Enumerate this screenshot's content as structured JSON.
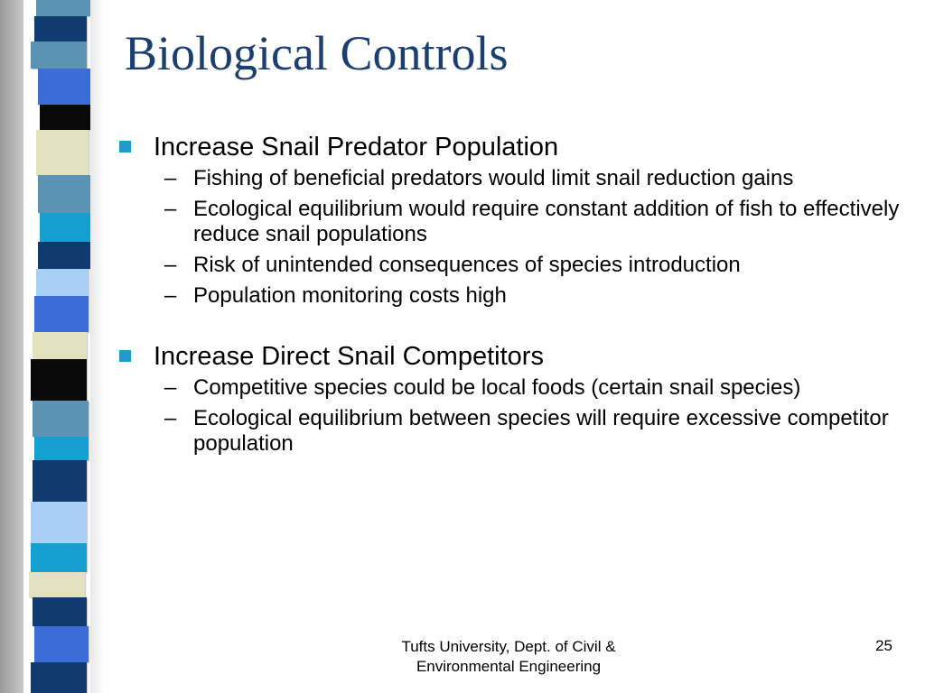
{
  "slide": {
    "title": "Biological Controls",
    "bullets": [
      {
        "text": "Increase Snail Predator Population",
        "subs": [
          "Fishing of beneficial predators would limit snail reduction gains",
          "Ecological equilibrium would require constant addition of fish to effectively reduce snail populations",
          "Risk of unintended consequences of species introduction",
          "Population monitoring costs high"
        ]
      },
      {
        "text": "Increase Direct Snail Competitors",
        "subs": [
          "Competitive species could be local foods (certain snail species)",
          "Ecological equilibrium between species will require excessive competitor population"
        ]
      }
    ],
    "sub_marker": "–",
    "footer_line1": "Tufts University, Dept. of Civil &",
    "footer_line2": "Environmental Engineering",
    "page_number": "25"
  },
  "colors": {
    "title": "#1c3f72",
    "bullet_marker": "#1e9bc8",
    "stripe_palette": [
      "#5b93b3",
      "#0f3b6e",
      "#3c6cd8",
      "#0a0a0a",
      "#e2e2c0",
      "#14a0d0",
      "#a8d0f4"
    ]
  }
}
